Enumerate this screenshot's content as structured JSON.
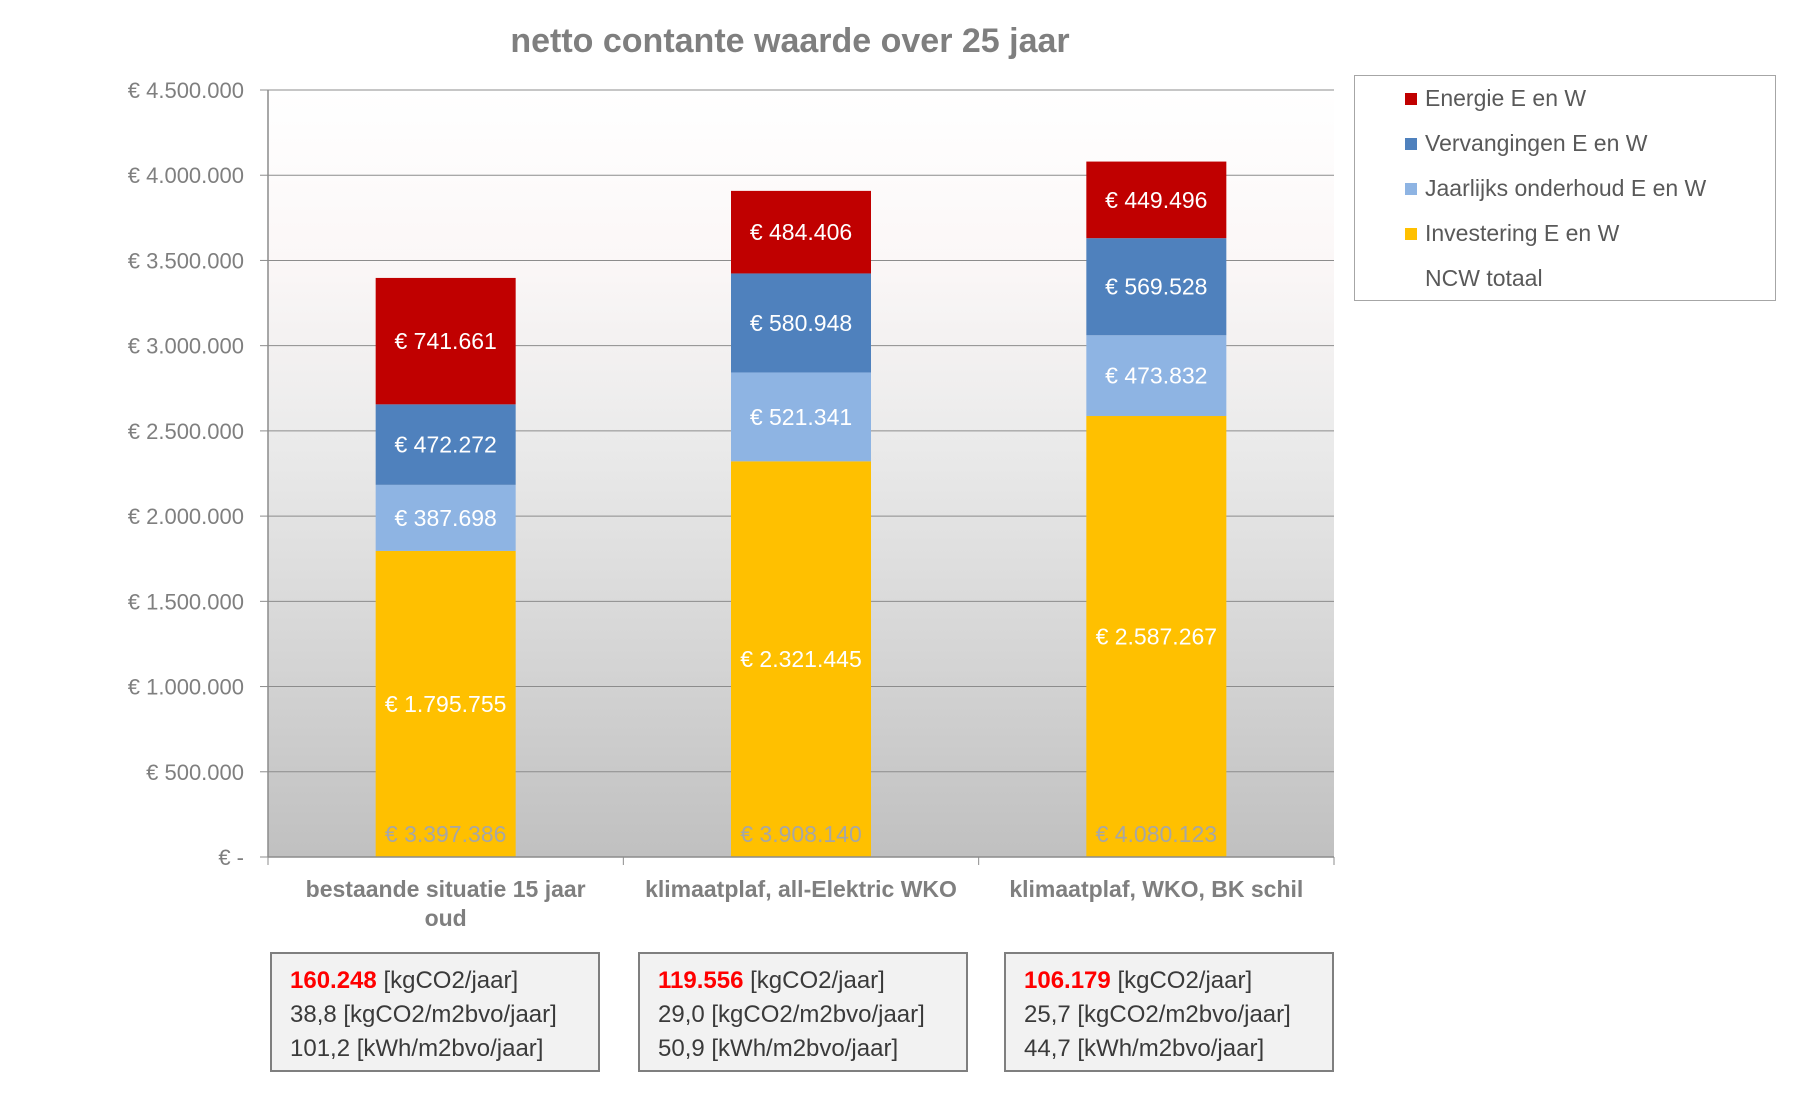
{
  "chart_data": {
    "type": "bar",
    "stacked": true,
    "title": "netto contante waarde over 25 jaar",
    "categories": [
      "bestaande situatie 15 jaar oud",
      "klimaatplaf, all-Elektric WKO",
      "klimaatplaf, WKO, BK schil"
    ],
    "category_lines": [
      [
        "bestaande situatie 15 jaar",
        "oud"
      ],
      [
        "klimaatplaf, all-Elektric WKO"
      ],
      [
        "klimaatplaf, WKO, BK schil"
      ]
    ],
    "ylim": [
      0,
      4500000
    ],
    "yticks": [
      0,
      500000,
      1000000,
      1500000,
      2000000,
      2500000,
      3000000,
      3500000,
      4000000,
      4500000
    ],
    "ytick_labels": [
      "€ -",
      "€ 500.000",
      "€ 1.000.000",
      "€ 1.500.000",
      "€ 2.000.000",
      "€ 2.500.000",
      "€ 3.000.000",
      "€ 3.500.000",
      "€ 4.000.000",
      "€ 4.500.000"
    ],
    "series": [
      {
        "name": "Investering E en W",
        "color": "#ffc000",
        "values": [
          1795755,
          2321445,
          2587267
        ],
        "labels": [
          "€ 1.795.755",
          "€ 2.321.445",
          "€ 2.587.267"
        ]
      },
      {
        "name": "Jaarlijks onderhoud E en W",
        "color": "#8eb4e3",
        "values": [
          387698,
          521341,
          473832
        ],
        "labels": [
          "€ 387.698",
          "€ 521.341",
          "€ 473.832"
        ]
      },
      {
        "name": "Vervangingen E en W",
        "color": "#4f81bd",
        "values": [
          472272,
          580948,
          569528
        ],
        "labels": [
          "€ 472.272",
          "€ 580.948",
          "€ 569.528"
        ]
      },
      {
        "name": "Energie E en W",
        "color": "#c00000",
        "values": [
          741661,
          484406,
          449496
        ],
        "labels": [
          "€ 741.661",
          "€ 484.406",
          "€ 449.496"
        ]
      }
    ],
    "totals": {
      "name": "NCW totaal",
      "values": [
        3397386,
        3908140,
        4080123
      ],
      "labels": [
        "€ 3.397.386",
        "€ 3.908.140",
        "€ 4.080.123"
      ]
    },
    "legend": {
      "position": "right",
      "items": [
        {
          "label": "Energie E en W",
          "color": "#c00000"
        },
        {
          "label": "Vervangingen E en W",
          "color": "#4f81bd"
        },
        {
          "label": "Jaarlijks onderhoud E en W",
          "color": "#8eb4e3"
        },
        {
          "label": "Investering E en W",
          "color": "#ffc000"
        },
        {
          "label": "NCW totaal",
          "color": ""
        }
      ]
    }
  },
  "emissions": [
    {
      "co2": "160.248",
      "co2_unit": "[kgCO2/jaar]",
      "line2": "38,8 [kgCO2/m2bvo/jaar]",
      "line3": "101,2 [kWh/m2bvo/jaar]"
    },
    {
      "co2": "119.556",
      "co2_unit": "[kgCO2/jaar]",
      "line2": "29,0 [kgCO2/m2bvo/jaar]",
      "line3": "50,9 [kWh/m2bvo/jaar]"
    },
    {
      "co2": "106.179",
      "co2_unit": "[kgCO2/jaar]",
      "line2": "25,7 [kgCO2/m2bvo/jaar]",
      "line3": "44,7 [kWh/m2bvo/jaar]"
    }
  ]
}
